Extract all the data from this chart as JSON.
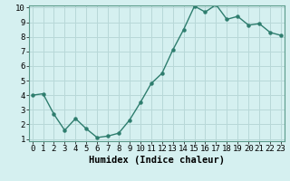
{
  "x": [
    0,
    1,
    2,
    3,
    4,
    5,
    6,
    7,
    8,
    9,
    10,
    11,
    12,
    13,
    14,
    15,
    16,
    17,
    18,
    19,
    20,
    21,
    22,
    23
  ],
  "y": [
    4.0,
    4.1,
    2.7,
    1.6,
    2.4,
    1.7,
    1.1,
    1.2,
    1.4,
    2.3,
    3.5,
    4.8,
    5.5,
    7.1,
    8.5,
    10.1,
    9.7,
    10.2,
    9.2,
    9.4,
    8.8,
    8.9,
    8.3,
    8.1
  ],
  "line_color": "#2e7d6e",
  "marker": "o",
  "markersize": 2.2,
  "linewidth": 1.0,
  "bg_color": "#d5f0f0",
  "grid_color": "#b8d8d8",
  "xlabel": "Humidex (Indice chaleur)",
  "ylim_min": 1,
  "ylim_max": 10,
  "xlim_min": 0,
  "xlim_max": 23,
  "yticks": [
    1,
    2,
    3,
    4,
    5,
    6,
    7,
    8,
    9,
    10
  ],
  "xticks": [
    0,
    1,
    2,
    3,
    4,
    5,
    6,
    7,
    8,
    9,
    10,
    11,
    12,
    13,
    14,
    15,
    16,
    17,
    18,
    19,
    20,
    21,
    22,
    23
  ],
  "xlabel_fontsize": 7.5,
  "tick_fontsize": 6.5
}
